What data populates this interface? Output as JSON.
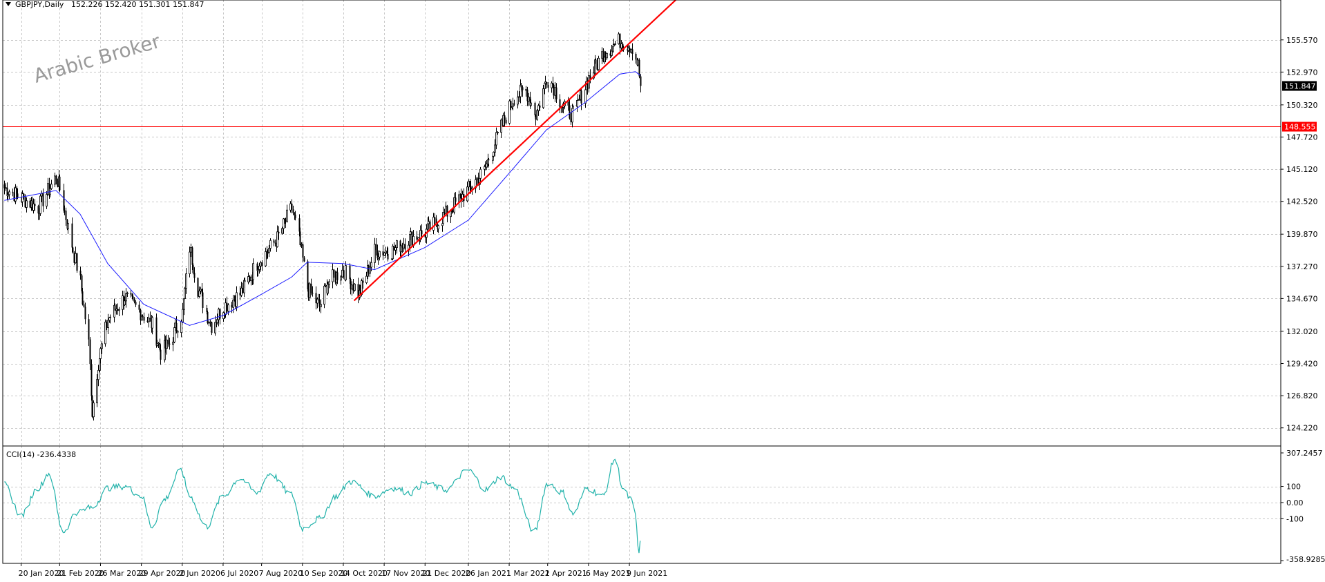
{
  "header": {
    "symbol": "GBPJPY,Daily",
    "ohlc": "152.226 152.420 151.301 151.847"
  },
  "watermark": "Arabic Broker",
  "colors": {
    "background": "#ffffff",
    "grid": "#c8c8c8",
    "candle": "#000000",
    "ma_line": "#1a1aff",
    "trendline": "#ff0000",
    "hline": "#ff0000",
    "price_tag_bg": "#000000",
    "level_tag_bg": "#ff0000",
    "cci_line": "#20b2aa"
  },
  "price_tags": {
    "current": "151.847",
    "level": "148.555"
  },
  "indicator": {
    "title": "CCI(14) -236.4338",
    "ticks": [
      "307.2457",
      "100",
      "0.00",
      "-100",
      "-358.9285"
    ]
  },
  "chart_data": [
    {
      "type": "candlestick",
      "symbol": "GBPJPY",
      "timeframe": "Daily",
      "ylim": [
        123.2,
        157.9
      ],
      "yticks": [
        "155.570",
        "152.970",
        "150.320",
        "147.720",
        "145.120",
        "142.520",
        "139.870",
        "137.270",
        "134.670",
        "132.020",
        "129.420",
        "126.820",
        "124.220"
      ],
      "xticks": [
        "20 Jan 2020",
        "21 Feb 2020",
        "26 Mar 2020",
        "29 Apr 2020",
        "2 Jun 2020",
        "6 Jul 2020",
        "7 Aug 2020",
        "10 Sep 2020",
        "14 Oct 2020",
        "17 Nov 2020",
        "21 Dec 2020",
        "26 Jan 2021",
        "1 Mar 2021",
        "2 Apr 2021",
        "6 May 2021",
        "9 Jun 2021"
      ],
      "close_path": [
        [
          "2020-01-06",
          143.6
        ],
        [
          "2020-01-20",
          142.8
        ],
        [
          "2020-02-03",
          142.0
        ],
        [
          "2020-02-18",
          144.5
        ],
        [
          "2020-02-21",
          143.5
        ],
        [
          "2020-03-02",
          139.0
        ],
        [
          "2020-03-09",
          136.0
        ],
        [
          "2020-03-16",
          131.0
        ],
        [
          "2020-03-19",
          125.5
        ],
        [
          "2020-03-24",
          129.5
        ],
        [
          "2020-04-01",
          133.0
        ],
        [
          "2020-04-15",
          134.8
        ],
        [
          "2020-04-29",
          133.5
        ],
        [
          "2020-05-08",
          132.5
        ],
        [
          "2020-05-15",
          130.3
        ],
        [
          "2020-05-22",
          131.0
        ],
        [
          "2020-06-02",
          133.5
        ],
        [
          "2020-06-08",
          138.8
        ],
        [
          "2020-06-15",
          135.5
        ],
        [
          "2020-06-26",
          132.5
        ],
        [
          "2020-07-06",
          134.0
        ],
        [
          "2020-07-20",
          135.0
        ],
        [
          "2020-08-03",
          137.5
        ],
        [
          "2020-08-20",
          139.5
        ],
        [
          "2020-09-01",
          142.0
        ],
        [
          "2020-09-07",
          139.5
        ],
        [
          "2020-09-14",
          135.5
        ],
        [
          "2020-09-24",
          134.0
        ],
        [
          "2020-10-01",
          136.0
        ],
        [
          "2020-10-14",
          137.0
        ],
        [
          "2020-10-27",
          135.0
        ],
        [
          "2020-11-09",
          138.5
        ],
        [
          "2020-11-23",
          138.5
        ],
        [
          "2020-12-07",
          139.5
        ],
        [
          "2020-12-21",
          140.0
        ],
        [
          "2021-01-07",
          141.5
        ],
        [
          "2021-01-26",
          143.5
        ],
        [
          "2021-02-08",
          145.0
        ],
        [
          "2021-02-22",
          148.5
        ],
        [
          "2021-03-05",
          151.0
        ],
        [
          "2021-03-15",
          151.5
        ],
        [
          "2021-03-23",
          149.5
        ],
        [
          "2021-04-01",
          152.5
        ],
        [
          "2021-04-06",
          152.0
        ],
        [
          "2021-04-15",
          150.0
        ],
        [
          "2021-04-23",
          149.5
        ],
        [
          "2021-05-06",
          152.5
        ],
        [
          "2021-05-18",
          154.5
        ],
        [
          "2021-06-01",
          155.5
        ],
        [
          "2021-06-11",
          155.0
        ],
        [
          "2021-06-16",
          153.5
        ],
        [
          "2021-06-18",
          151.85
        ]
      ],
      "overlays": {
        "moving_average": [
          [
            "2020-01-06",
            142.6
          ],
          [
            "2020-02-18",
            143.4
          ],
          [
            "2020-03-09",
            141.5
          ],
          [
            "2020-04-01",
            137.5
          ],
          [
            "2020-05-01",
            134.2
          ],
          [
            "2020-06-08",
            132.5
          ],
          [
            "2020-07-06",
            133.3
          ],
          [
            "2020-08-03",
            134.8
          ],
          [
            "2020-09-01",
            136.4
          ],
          [
            "2020-09-14",
            137.6
          ],
          [
            "2020-10-14",
            137.5
          ],
          [
            "2020-11-09",
            137.0
          ],
          [
            "2020-12-21",
            138.8
          ],
          [
            "2021-01-26",
            141.0
          ],
          [
            "2021-03-01",
            144.8
          ],
          [
            "2021-04-01",
            148.3
          ],
          [
            "2021-05-03",
            150.5
          ],
          [
            "2021-06-01",
            152.8
          ],
          [
            "2021-06-14",
            153.0
          ],
          [
            "2021-06-18",
            152.7
          ]
        ],
        "trendline": {
          "from": [
            "2020-10-23",
            134.5
          ],
          "to": [
            "2021-07-22",
            159.2
          ]
        },
        "horizontal_level": 148.555
      }
    },
    {
      "type": "line",
      "name": "CCI(14)",
      "last_value": -236.4338,
      "ylim": [
        -358.9285,
        307.2457
      ],
      "levels": [
        100,
        0,
        -100
      ],
      "x": [
        "2020-01-06",
        "2020-01-20",
        "2020-02-03",
        "2020-02-12",
        "2020-02-24",
        "2020-03-06",
        "2020-03-19",
        "2020-04-01",
        "2020-04-15",
        "2020-04-29",
        "2020-05-08",
        "2020-05-18",
        "2020-06-01",
        "2020-06-08",
        "2020-06-22",
        "2020-07-06",
        "2020-07-20",
        "2020-08-03",
        "2020-08-14",
        "2020-09-01",
        "2020-09-10",
        "2020-09-24",
        "2020-10-08",
        "2020-10-20",
        "2020-11-09",
        "2020-11-24",
        "2020-12-09",
        "2020-12-21",
        "2021-01-07",
        "2021-01-26",
        "2021-02-10",
        "2021-02-22",
        "2021-03-05",
        "2021-03-22",
        "2021-04-02",
        "2021-04-15",
        "2021-04-23",
        "2021-05-05",
        "2021-05-18",
        "2021-05-28",
        "2021-06-04",
        "2021-06-10",
        "2021-06-14",
        "2021-06-17",
        "2021-06-18"
      ],
      "values": [
        110,
        -80,
        90,
        180,
        -180,
        -60,
        -30,
        90,
        100,
        40,
        -150,
        20,
        200,
        40,
        -150,
        40,
        150,
        60,
        180,
        50,
        -160,
        -100,
        40,
        130,
        40,
        90,
        60,
        120,
        80,
        200,
        80,
        160,
        90,
        -180,
        120,
        60,
        -70,
        90,
        40,
        270,
        80,
        20,
        -80,
        -330,
        -236.43
      ]
    }
  ]
}
